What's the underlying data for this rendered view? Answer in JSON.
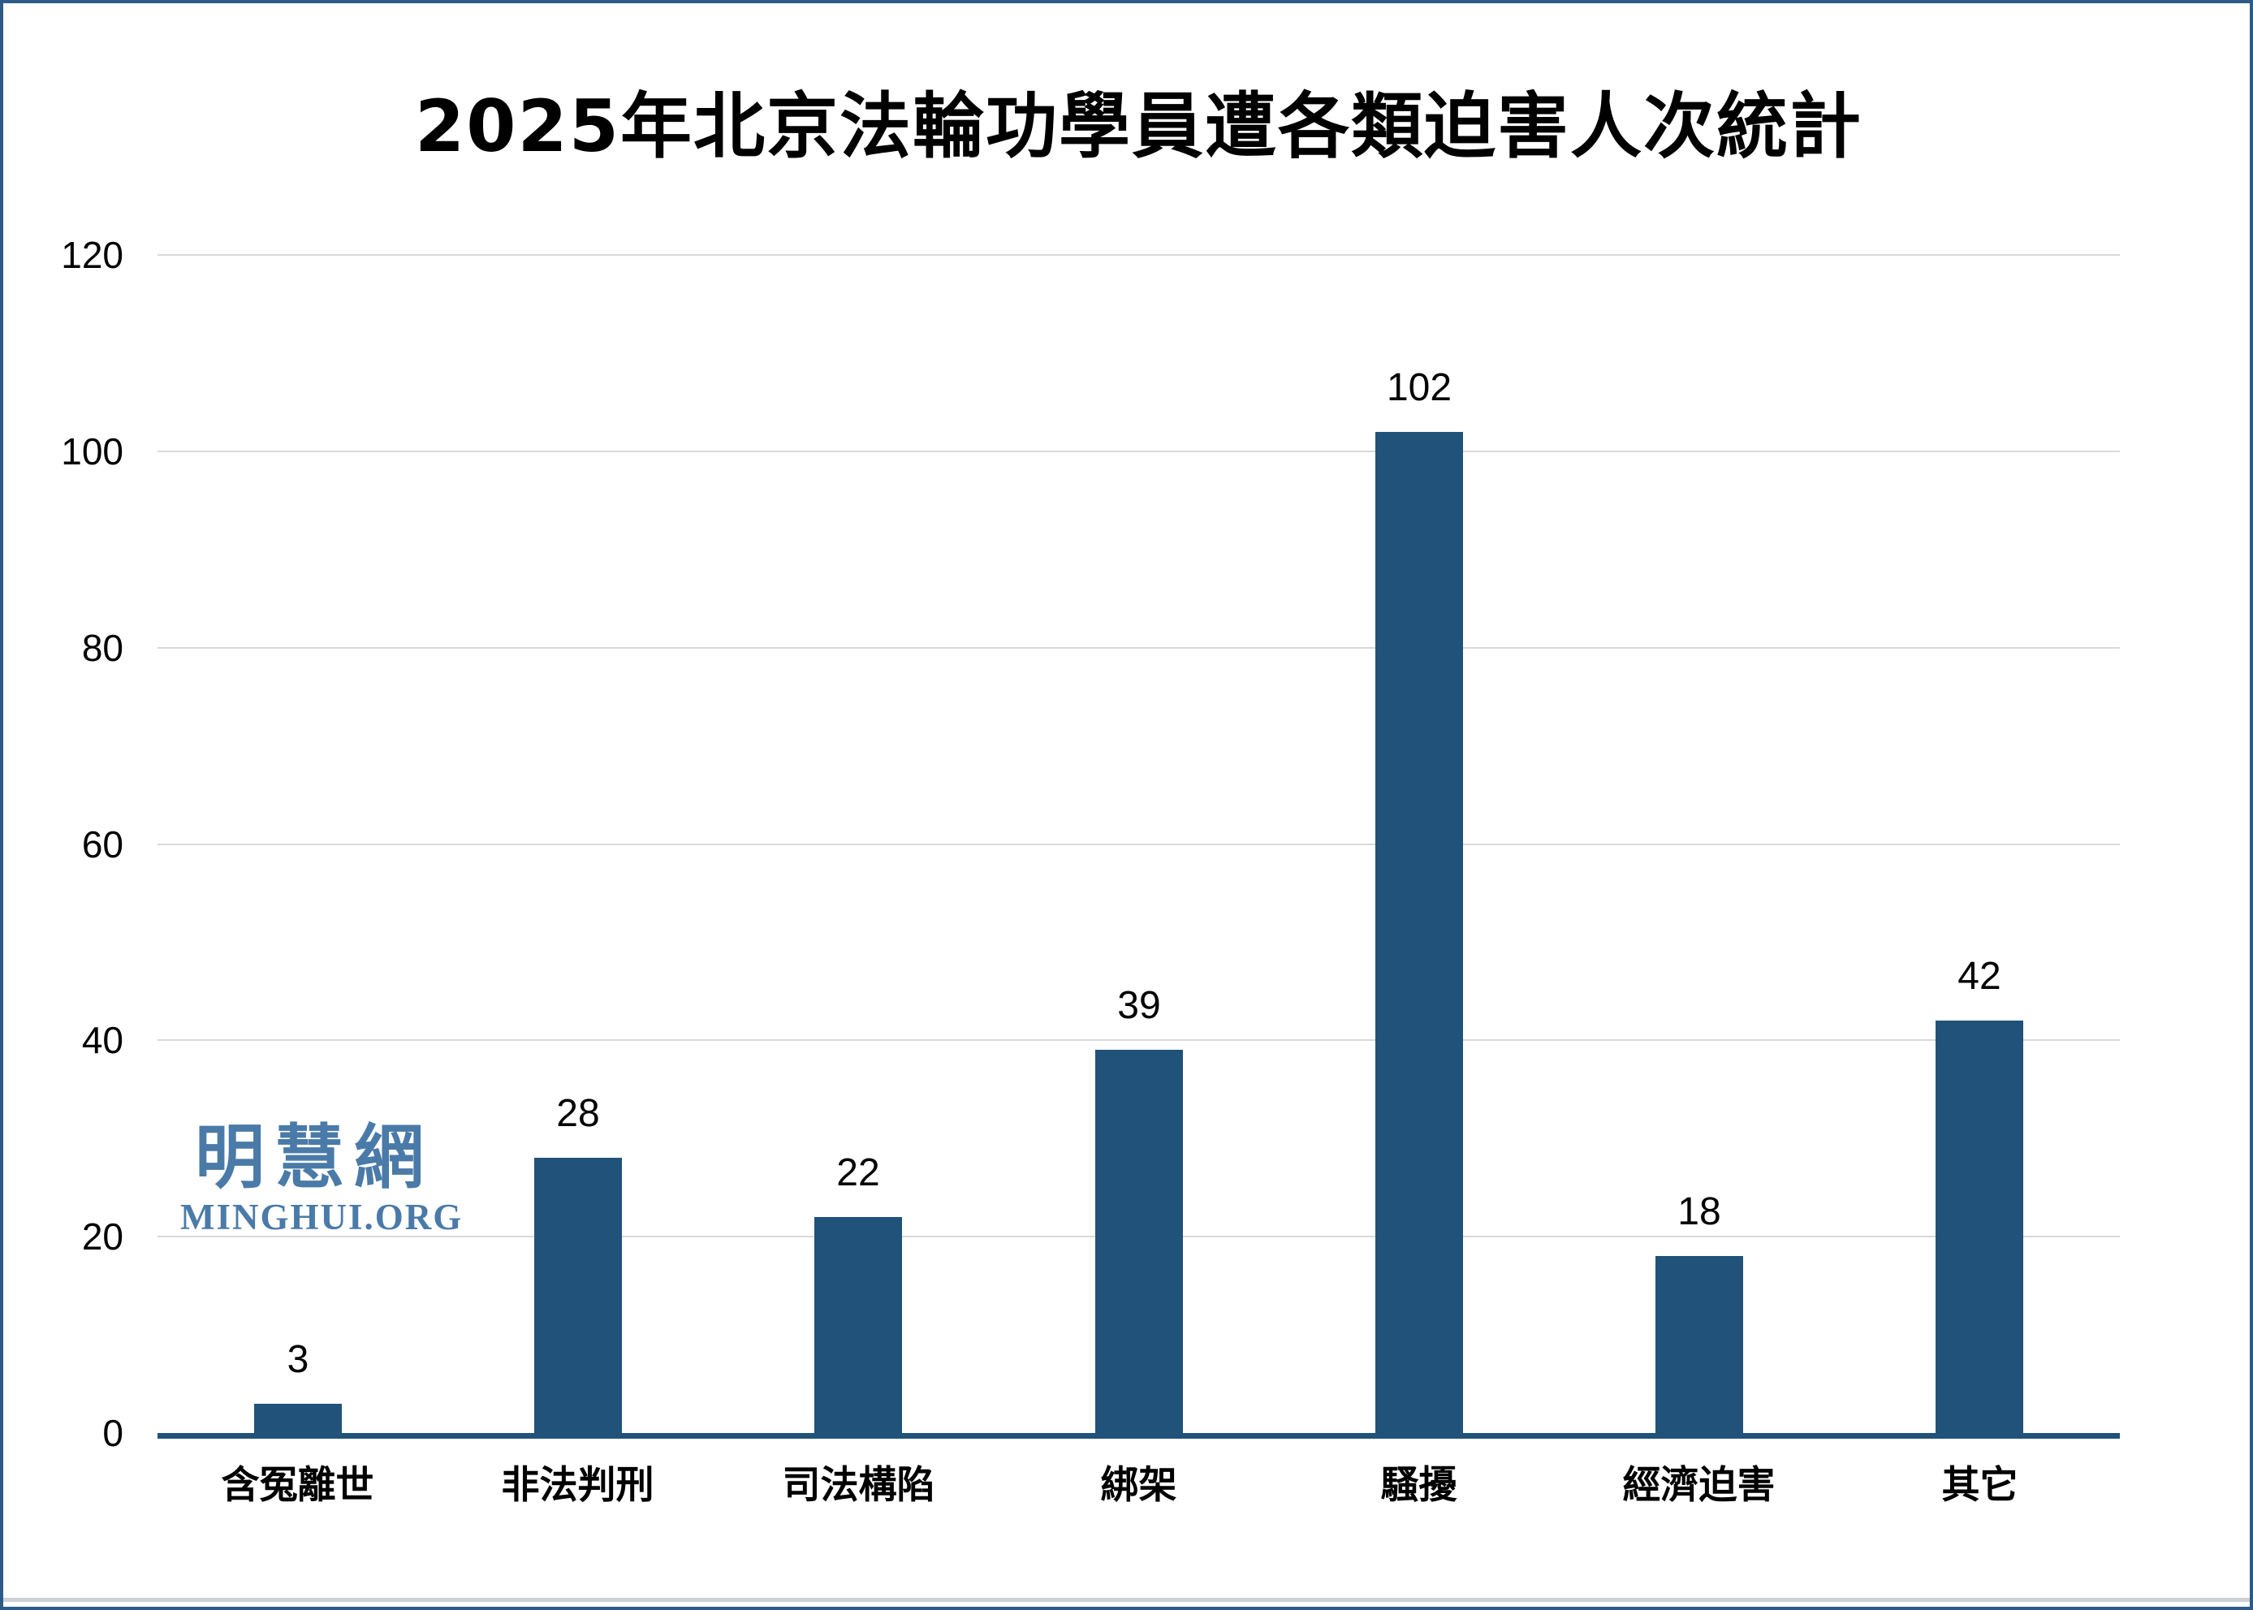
{
  "title": "2025年北京法輪功學員遭各類迫害人次統計",
  "watermark": {
    "cjk": "明慧網",
    "latin": "MINGHUI.ORG",
    "color": "#4A7AA8"
  },
  "colors": {
    "bar": "#215279",
    "axis": "#215279",
    "frame_border": "#2E5B86",
    "gridline": "#D9D9D9",
    "text": "#000000",
    "bottom_strip": "#CDD0D4",
    "background": "#FFFFFF"
  },
  "chart_data": {
    "type": "bar",
    "title": "2025年北京法輪功學員遭各類迫害人次統計",
    "categories": [
      "含冤離世",
      "非法判刑",
      "司法構陷",
      "綁架",
      "騷擾",
      "經濟迫害",
      "其它"
    ],
    "values": [
      3,
      28,
      22,
      39,
      102,
      18,
      42
    ],
    "xlabel": "",
    "ylabel": "",
    "ylim": [
      0,
      120
    ],
    "yticks": [
      0,
      20,
      40,
      60,
      80,
      100,
      120
    ],
    "grid": "horizontal-only",
    "legend": "none",
    "bar_color": "#215279",
    "value_labels_shown": true
  }
}
